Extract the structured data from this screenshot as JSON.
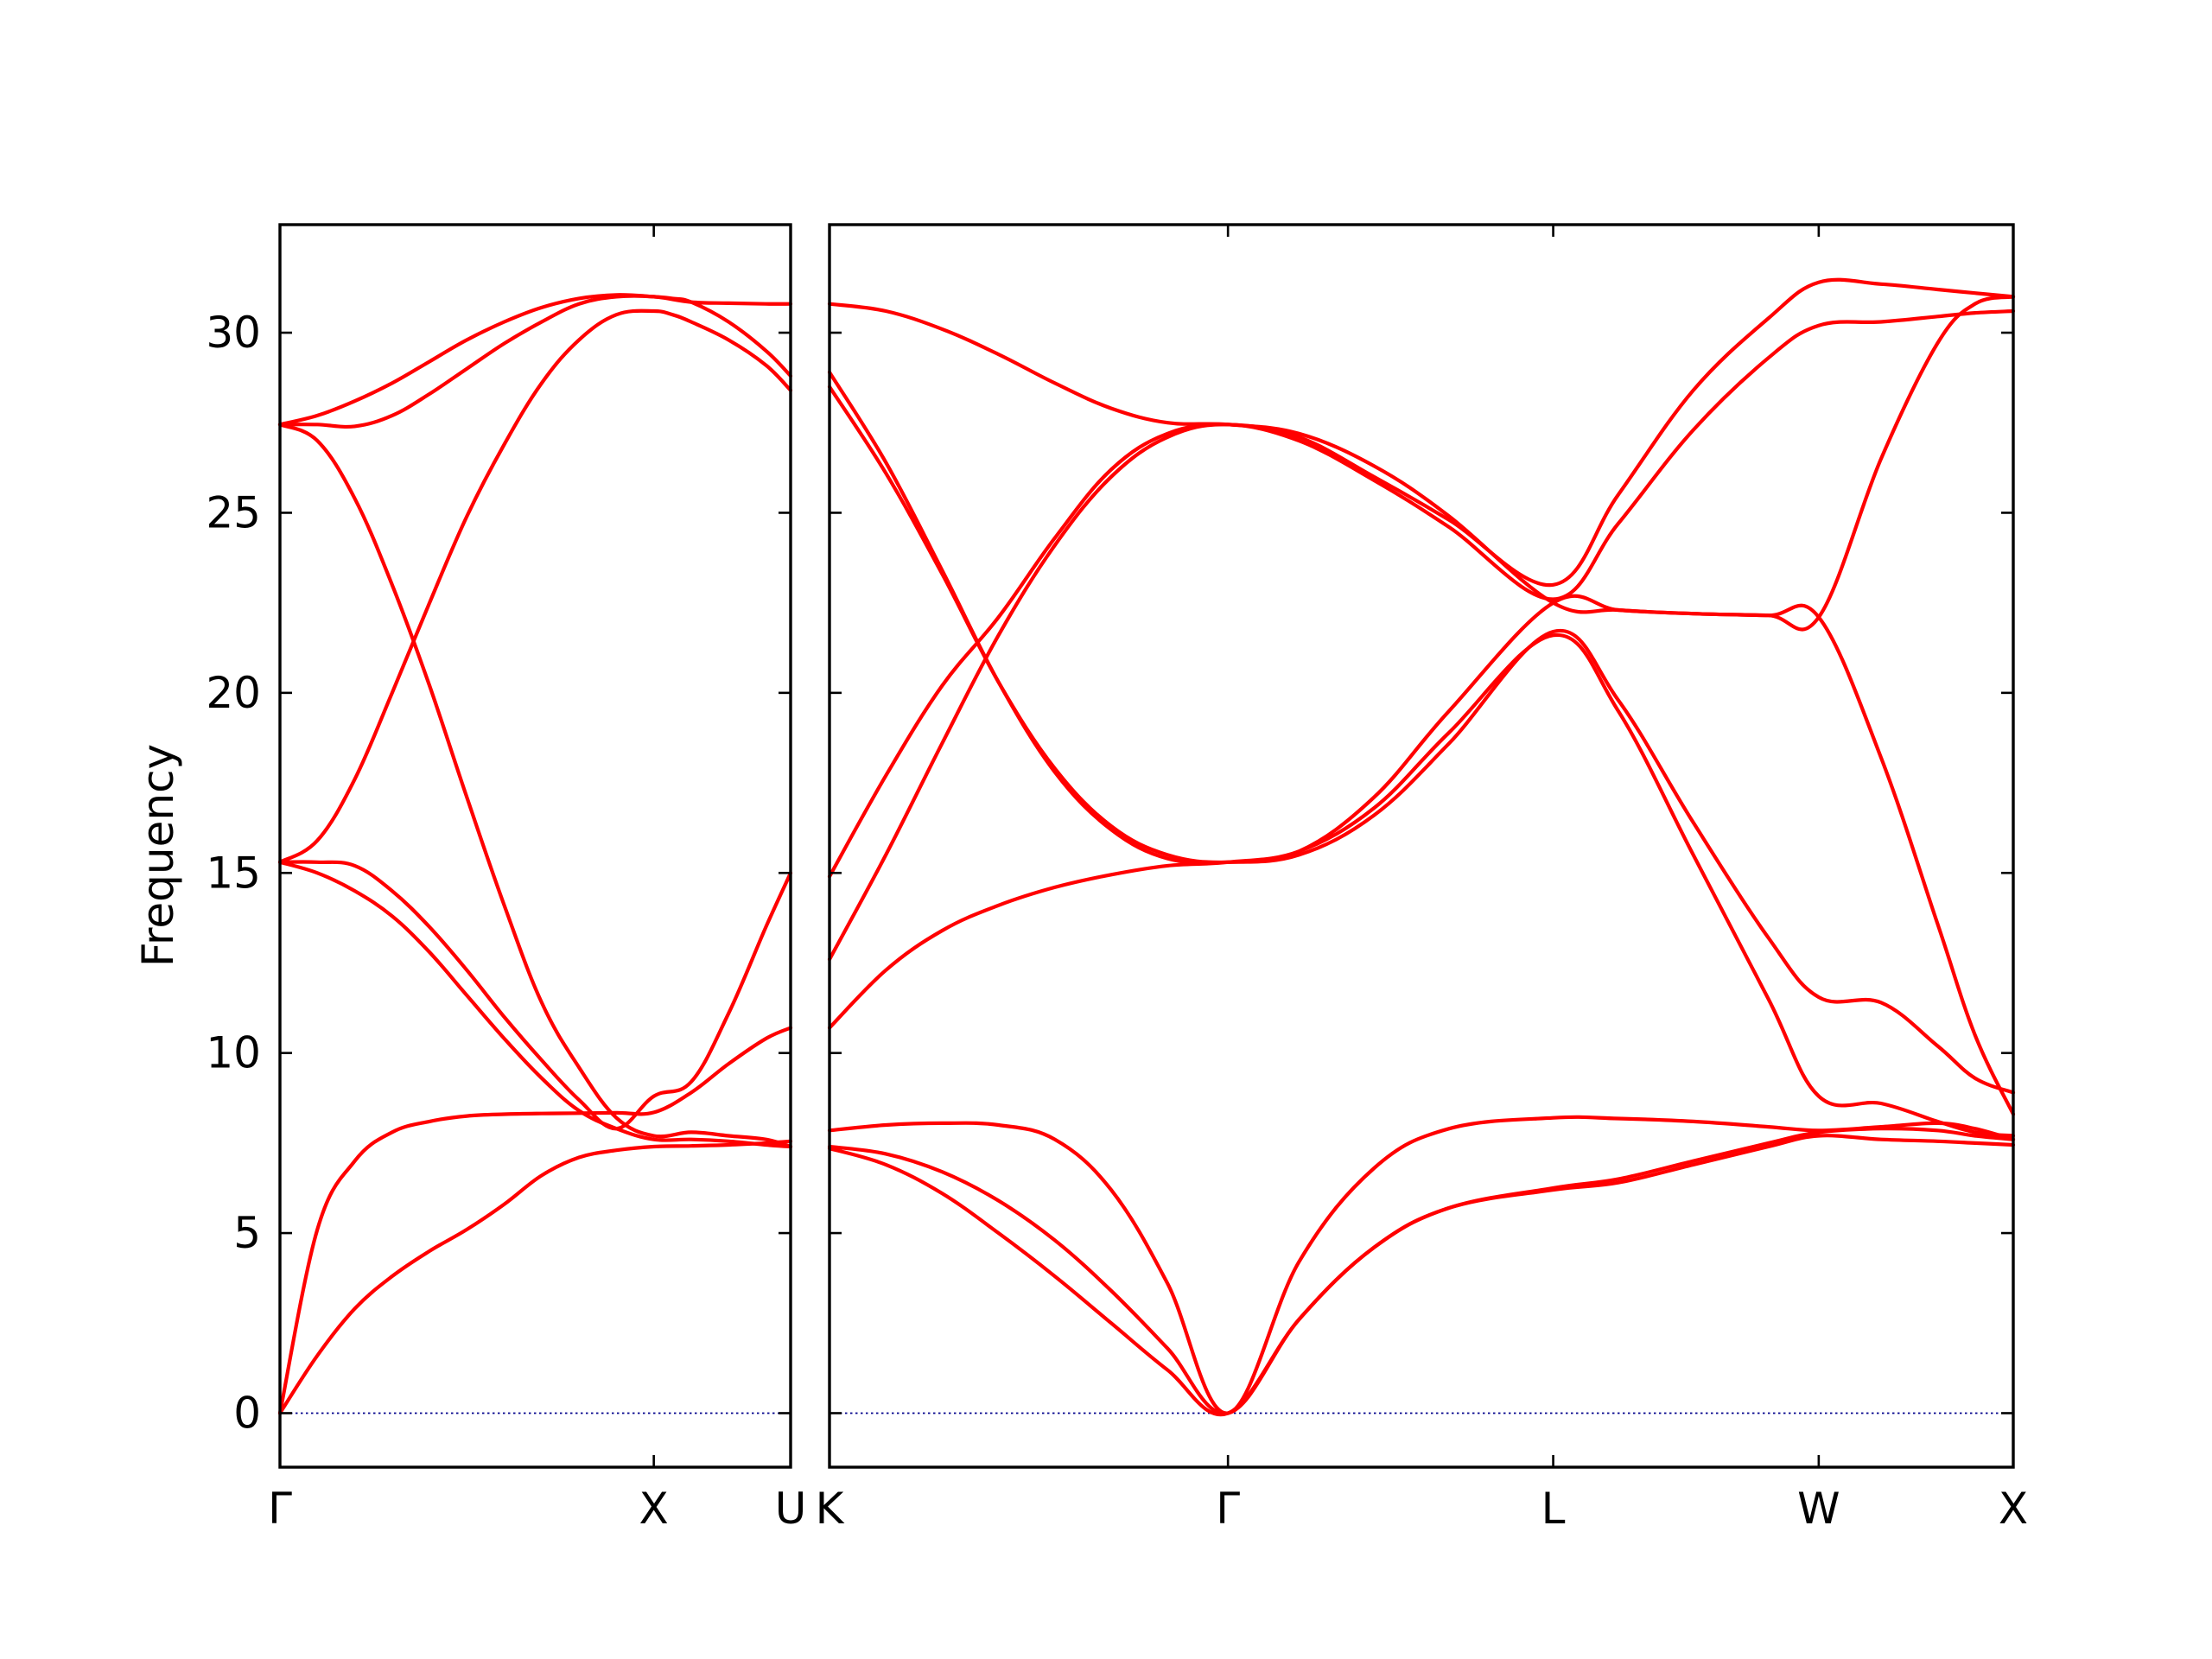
{
  "chart_data": {
    "type": "line",
    "ylabel": "Frequency",
    "ylim": [
      -1.5,
      33.0
    ],
    "yticks": [
      0,
      5,
      10,
      15,
      20,
      25,
      30
    ],
    "grid": false,
    "colors": {
      "bands": "#ff0000",
      "zero_line": "#00008b"
    },
    "panels": [
      {
        "id": "gamma-x-u",
        "x_range": [
          0.0,
          1.366
        ],
        "xticks": [
          {
            "x": 0.0,
            "label": "Γ"
          },
          {
            "x": 1.0,
            "label": "X"
          },
          {
            "x": 1.366,
            "label": "U"
          }
        ],
        "series": [
          {
            "x": [
              0,
              0.1,
              0.2,
              0.3,
              0.4,
              0.5,
              0.6,
              0.7,
              0.8,
              0.9,
              1.0,
              1.1,
              1.2,
              1.3,
              1.366
            ],
            "y": [
              0,
              5.1,
              7.0,
              7.8,
              8.1,
              8.25,
              8.3,
              8.32,
              8.33,
              8.34,
              8.35,
              8.9,
              9.7,
              10.4,
              10.7
            ]
          },
          {
            "x": [
              0,
              0.1,
              0.2,
              0.3,
              0.4,
              0.5,
              0.6,
              0.7,
              0.8,
              0.9,
              1.0,
              1.1,
              1.2,
              1.3,
              1.366
            ],
            "y": [
              0,
              1.6,
              2.9,
              3.8,
              4.5,
              5.1,
              5.8,
              6.6,
              7.1,
              7.3,
              7.4,
              7.42,
              7.45,
              7.5,
              7.55
            ]
          },
          {
            "x": [
              0,
              0.1,
              0.2,
              0.3,
              0.4,
              0.5,
              0.6,
              0.7,
              0.8,
              0.9,
              1.0,
              1.1,
              1.2,
              1.3,
              1.366
            ],
            "y": [
              15.3,
              15.0,
              14.5,
              13.8,
              12.8,
              11.6,
              10.4,
              9.3,
              8.4,
              7.9,
              7.6,
              7.6,
              7.55,
              7.45,
              7.4
            ]
          },
          {
            "x": [
              0,
              0.1,
              0.2,
              0.3,
              0.4,
              0.5,
              0.6,
              0.7,
              0.8,
              0.9,
              1.0,
              1.05,
              1.1,
              1.2,
              1.3,
              1.366
            ],
            "y": [
              15.3,
              15.9,
              17.6,
              20.0,
              22.5,
              24.9,
              26.9,
              28.6,
              29.8,
              30.5,
              30.6,
              30.5,
              30.3,
              29.8,
              29.1,
              28.4
            ]
          },
          {
            "x": [
              0,
              0.1,
              0.2,
              0.3,
              0.4,
              0.5,
              0.6,
              0.7,
              0.8,
              0.9,
              1.0,
              1.1,
              1.2,
              1.3,
              1.366
            ],
            "y": [
              27.45,
              27.0,
              25.4,
              23.0,
              20.2,
              17.1,
              14.1,
              11.4,
              9.6,
              8.2,
              7.7,
              7.8,
              7.7,
              7.6,
              7.4
            ]
          },
          {
            "x": [
              0,
              0.1,
              0.2,
              0.3,
              0.4,
              0.5,
              0.6,
              0.7,
              0.8,
              0.9,
              1.0,
              1.05,
              1.1,
              1.2,
              1.3,
              1.366
            ],
            "y": [
              27.45,
              27.7,
              28.1,
              28.6,
              29.2,
              29.8,
              30.3,
              30.7,
              30.95,
              31.05,
              31.0,
              30.95,
              30.85,
              30.3,
              29.5,
              28.8
            ]
          },
          {
            "x": [
              0,
              0.1,
              0.2,
              0.3,
              0.4,
              0.5,
              0.6,
              0.7,
              0.8,
              0.9,
              1.0,
              1.1,
              1.2,
              1.3,
              1.366
            ],
            "y": [
              15.3,
              15.3,
              15.2,
              14.5,
              13.5,
              12.3,
              11.0,
              9.8,
              8.7,
              7.9,
              8.8,
              9.2,
              11.1,
              13.5,
              15.0
            ]
          },
          {
            "x": [
              0,
              0.1,
              0.2,
              0.3,
              0.4,
              0.5,
              0.6,
              0.7,
              0.8,
              0.9,
              1.0,
              1.1,
              1.2,
              1.3,
              1.366
            ],
            "y": [
              27.45,
              27.45,
              27.4,
              27.7,
              28.3,
              29.0,
              29.7,
              30.3,
              30.8,
              31.0,
              31.0,
              30.85,
              30.82,
              30.8,
              30.8
            ]
          }
        ]
      },
      {
        "id": "k-gamma-l-w-x",
        "x_range": [
          0.0,
          3.152
        ],
        "xticks": [
          {
            "x": 0.0,
            "label": "K"
          },
          {
            "x": 1.061,
            "label": "Γ"
          },
          {
            "x": 1.927,
            "label": "L"
          },
          {
            "x": 2.634,
            "label": "W"
          },
          {
            "x": 3.152,
            "label": "X"
          }
        ],
        "series": [
          {
            "x": [
              0,
              0.15,
              0.3,
              0.45,
              0.6,
              0.75,
              0.9,
              1.061,
              1.25,
              1.45,
              1.65,
              1.927,
              2.1,
              2.3,
              2.5,
              2.634,
              2.8,
              2.95,
              3.05,
              3.152
            ],
            "y": [
              7.85,
              8.0,
              8.05,
              8.0,
              7.6,
              6.2,
              3.6,
              0,
              4.2,
              6.8,
              7.9,
              8.2,
              8.18,
              8.1,
              7.95,
              7.85,
              7.95,
              8.05,
              7.9,
              7.6
            ]
          },
          {
            "x": [
              0,
              0.15,
              0.3,
              0.45,
              0.6,
              0.75,
              0.9,
              1.061,
              1.25,
              1.45,
              1.65,
              1.927,
              2.1,
              2.3,
              2.5,
              2.634,
              2.8,
              2.95,
              3.05,
              3.152
            ],
            "y": [
              7.4,
              7.2,
              6.7,
              5.9,
              4.8,
              3.4,
              1.8,
              0,
              2.6,
              4.6,
              5.7,
              6.2,
              6.4,
              6.9,
              7.4,
              7.7,
              7.6,
              7.55,
              7.5,
              7.45
            ]
          },
          {
            "x": [
              0,
              0.15,
              0.3,
              0.45,
              0.6,
              0.75,
              0.9,
              1.061,
              1.25,
              1.45,
              1.65,
              1.927,
              2.1,
              2.3,
              2.5,
              2.634,
              2.8,
              2.95,
              3.05,
              3.152
            ],
            "y": [
              7.35,
              6.9,
              6.1,
              5.0,
              3.8,
              2.5,
              1.2,
              0,
              2.6,
              4.6,
              5.7,
              6.25,
              6.5,
              7.0,
              7.5,
              7.8,
              7.9,
              7.85,
              7.7,
              7.6
            ]
          },
          {
            "x": [
              0,
              0.15,
              0.3,
              0.45,
              0.6,
              0.75,
              0.9,
              1.061,
              1.25,
              1.45,
              1.65,
              1.927,
              2.1,
              2.3,
              2.5,
              2.634,
              2.8,
              2.95,
              3.05,
              3.152
            ],
            "y": [
              10.7,
              12.3,
              13.4,
              14.1,
              14.6,
              14.95,
              15.2,
              15.3,
              15.6,
              16.8,
              18.9,
              21.6,
              19.5,
              15.5,
              11.5,
              8.8,
              8.6,
              8.1,
              7.8,
              7.7
            ]
          },
          {
            "x": [
              0,
              0.15,
              0.3,
              0.45,
              0.6,
              0.75,
              0.9,
              1.061,
              1.25,
              1.45,
              1.65,
              1.927,
              2.1,
              2.3,
              2.5,
              2.634,
              2.8,
              2.95,
              3.05,
              3.152
            ],
            "y": [
              28.9,
              26.4,
              23.4,
              20.3,
              17.8,
              16.2,
              15.4,
              15.3,
              15.5,
              16.6,
              18.6,
              21.7,
              19.8,
              16.4,
              13.2,
              11.55,
              11.4,
              10.2,
              9.3,
              8.9
            ]
          },
          {
            "x": [
              0,
              0.15,
              0.3,
              0.45,
              0.6,
              0.75,
              0.9,
              1.061,
              1.25,
              1.45,
              1.65,
              1.927,
              2.1,
              2.3,
              2.5,
              2.634,
              2.8,
              2.95,
              3.05,
              3.152
            ],
            "y": [
              28.5,
              26.1,
              23.3,
              20.3,
              17.9,
              16.3,
              15.5,
              15.3,
              15.6,
              17.1,
              19.5,
              22.5,
              22.3,
              22.2,
              22.15,
              22.1,
              18.2,
              13.6,
              10.5,
              8.3
            ]
          },
          {
            "x": [
              0,
              0.15,
              0.3,
              0.45,
              0.6,
              0.75,
              0.9,
              1.061,
              1.25,
              1.45,
              1.65,
              1.927,
              2.1,
              2.3,
              2.5,
              2.634,
              2.8,
              2.95,
              3.05,
              3.152
            ],
            "y": [
              12.6,
              15.5,
              18.6,
              21.6,
              24.1,
              26.0,
              27.1,
              27.45,
              27.0,
              25.9,
              24.6,
              22.6,
              24.7,
              27.3,
              29.3,
              30.2,
              30.3,
              30.45,
              30.55,
              30.6
            ]
          },
          {
            "x": [
              0,
              0.15,
              0.3,
              0.45,
              0.6,
              0.75,
              0.9,
              1.061,
              1.25,
              1.45,
              1.65,
              1.927,
              2.1,
              2.3,
              2.5,
              2.634,
              2.8,
              2.95,
              3.05,
              3.152
            ],
            "y": [
              14.9,
              17.7,
              20.2,
              22.1,
              24.3,
              26.2,
              27.2,
              27.45,
              27.1,
              26.0,
              24.8,
              23.0,
              25.5,
              28.4,
              30.4,
              31.4,
              31.35,
              31.2,
              31.1,
              31.0
            ]
          },
          {
            "x": [
              0,
              0.15,
              0.3,
              0.45,
              0.6,
              0.75,
              0.9,
              1.061,
              1.25,
              1.45,
              1.65,
              1.927,
              2.1,
              2.3,
              2.5,
              2.634,
              2.8,
              2.95,
              3.05,
              3.152
            ],
            "y": [
              30.8,
              30.6,
              30.1,
              29.4,
              28.6,
              27.9,
              27.5,
              27.45,
              27.2,
              26.3,
              24.9,
              22.5,
              22.3,
              22.2,
              22.15,
              22.1,
              26.5,
              29.7,
              30.8,
              31.0
            ]
          }
        ]
      }
    ]
  }
}
